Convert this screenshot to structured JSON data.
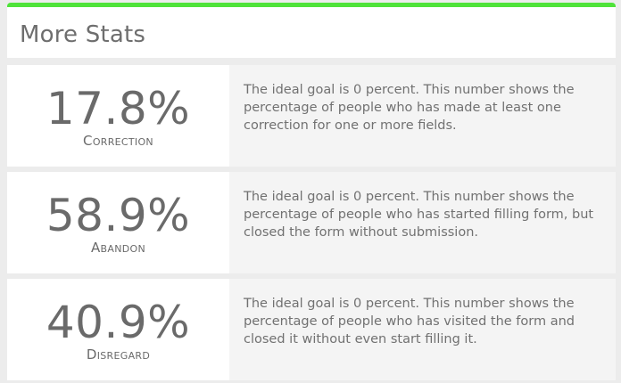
{
  "header": {
    "title": "More Stats",
    "accent_color": "#4fe33a"
  },
  "stats": [
    {
      "value": "17.8%",
      "label": "Correction",
      "description": "The ideal goal is 0 percent. This number shows the percentage of people who has made at least one correction for one or more fields."
    },
    {
      "value": "58.9%",
      "label": "Abandon",
      "description": "The ideal goal is 0 percent. This number shows the percentage of people who has started filling form, but closed the form without submission."
    },
    {
      "value": "40.9%",
      "label": "Disregard",
      "description": "The ideal goal is 0 percent. This number shows the percentage of people who has visited the form and closed it without even start filling it."
    }
  ]
}
